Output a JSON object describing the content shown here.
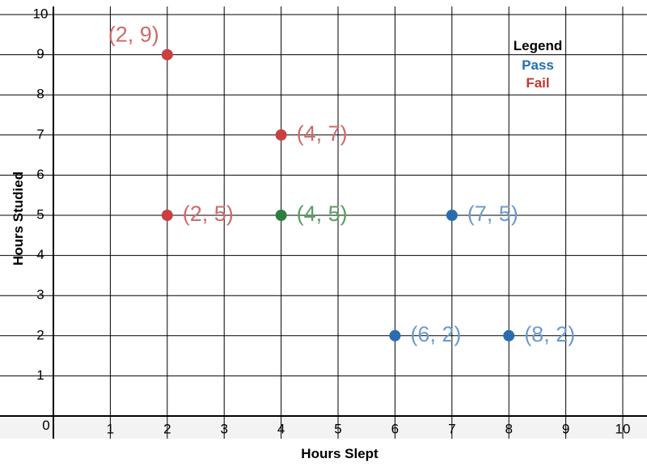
{
  "chart_data": {
    "type": "scatter",
    "xlabel": "Hours Slept",
    "ylabel": "Hours Studied",
    "xlim": [
      0,
      10
    ],
    "ylim": [
      0,
      10
    ],
    "x_ticks": [
      "0",
      "1",
      "2",
      "3",
      "4",
      "5",
      "6",
      "7",
      "8",
      "9",
      "10"
    ],
    "y_ticks": [
      "1",
      "2",
      "3",
      "4",
      "5",
      "6",
      "7",
      "8",
      "9",
      "10"
    ],
    "origin_label": "0",
    "grid": true,
    "legend": {
      "title": "Legend",
      "position": "top-right",
      "entries": [
        {
          "label": "Pass",
          "color": "#1f6fb4"
        },
        {
          "label": "Fail",
          "color": "#c0392b"
        }
      ]
    },
    "points": [
      {
        "x": 2,
        "y": 9,
        "label": "(2, 9)",
        "color": "#c84040",
        "label_color": "#d06a6a",
        "label_side": "top-left"
      },
      {
        "x": 4,
        "y": 7,
        "label": "(4, 7)",
        "color": "#c84040",
        "label_color": "#d06a6a",
        "label_side": "right"
      },
      {
        "x": 2,
        "y": 5,
        "label": "(2, 5)",
        "color": "#c84040",
        "label_color": "#d06a6a",
        "label_side": "right"
      },
      {
        "x": 4,
        "y": 5,
        "label": "(4, 5)",
        "color": "#2e7d3e",
        "label_color": "#5a9e63",
        "label_side": "right"
      },
      {
        "x": 7,
        "y": 5,
        "label": "(7, 5)",
        "color": "#2b6cb0",
        "label_color": "#6b9bd0",
        "label_side": "right"
      },
      {
        "x": 6,
        "y": 2,
        "label": "(6, 2)",
        "color": "#2b6cb0",
        "label_color": "#6b9bd0",
        "label_side": "right"
      },
      {
        "x": 8,
        "y": 2,
        "label": "(8, 2)",
        "color": "#2b6cb0",
        "label_color": "#6b9bd0",
        "label_side": "right"
      }
    ]
  }
}
